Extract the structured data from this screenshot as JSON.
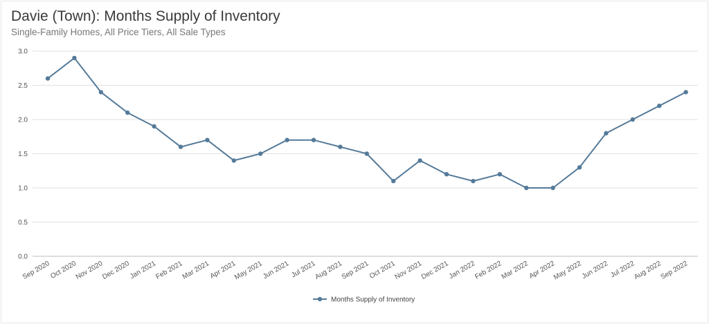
{
  "title": "Davie (Town): Months Supply of Inventory",
  "subtitle": "Single-Family Homes, All Price Tiers, All Sale Types",
  "chart_data": {
    "type": "line",
    "categories": [
      "Sep 2020",
      "Oct 2020",
      "Nov 2020",
      "Dec 2020",
      "Jan 2021",
      "Feb 2021",
      "Mar 2021",
      "Apr 2021",
      "May 2021",
      "Jun 2021",
      "Jul 2021",
      "Aug 2021",
      "Sep 2021",
      "Oct 2021",
      "Nov 2021",
      "Dec 2021",
      "Jan 2022",
      "Feb 2022",
      "Mar 2022",
      "Apr 2022",
      "May 2022",
      "Jun 2022",
      "Jul 2022",
      "Aug 2022",
      "Sep 2022"
    ],
    "series": [
      {
        "name": "Months Supply of Inventory",
        "color": "#557a99",
        "values": [
          2.6,
          2.9,
          2.4,
          2.1,
          1.9,
          1.6,
          1.7,
          1.4,
          1.5,
          1.7,
          1.7,
          1.6,
          1.5,
          1.1,
          1.4,
          1.2,
          1.1,
          1.2,
          1.0,
          1.0,
          1.3,
          1.8,
          2.0,
          2.2,
          2.4
        ]
      }
    ],
    "yticks": [
      "0.0",
      "0.5",
      "1.0",
      "1.5",
      "2.0",
      "2.5",
      "3.0"
    ],
    "ylim": [
      0,
      3
    ],
    "xlabel": "",
    "ylabel": "",
    "grid": true,
    "legend_position": "bottom-center"
  }
}
